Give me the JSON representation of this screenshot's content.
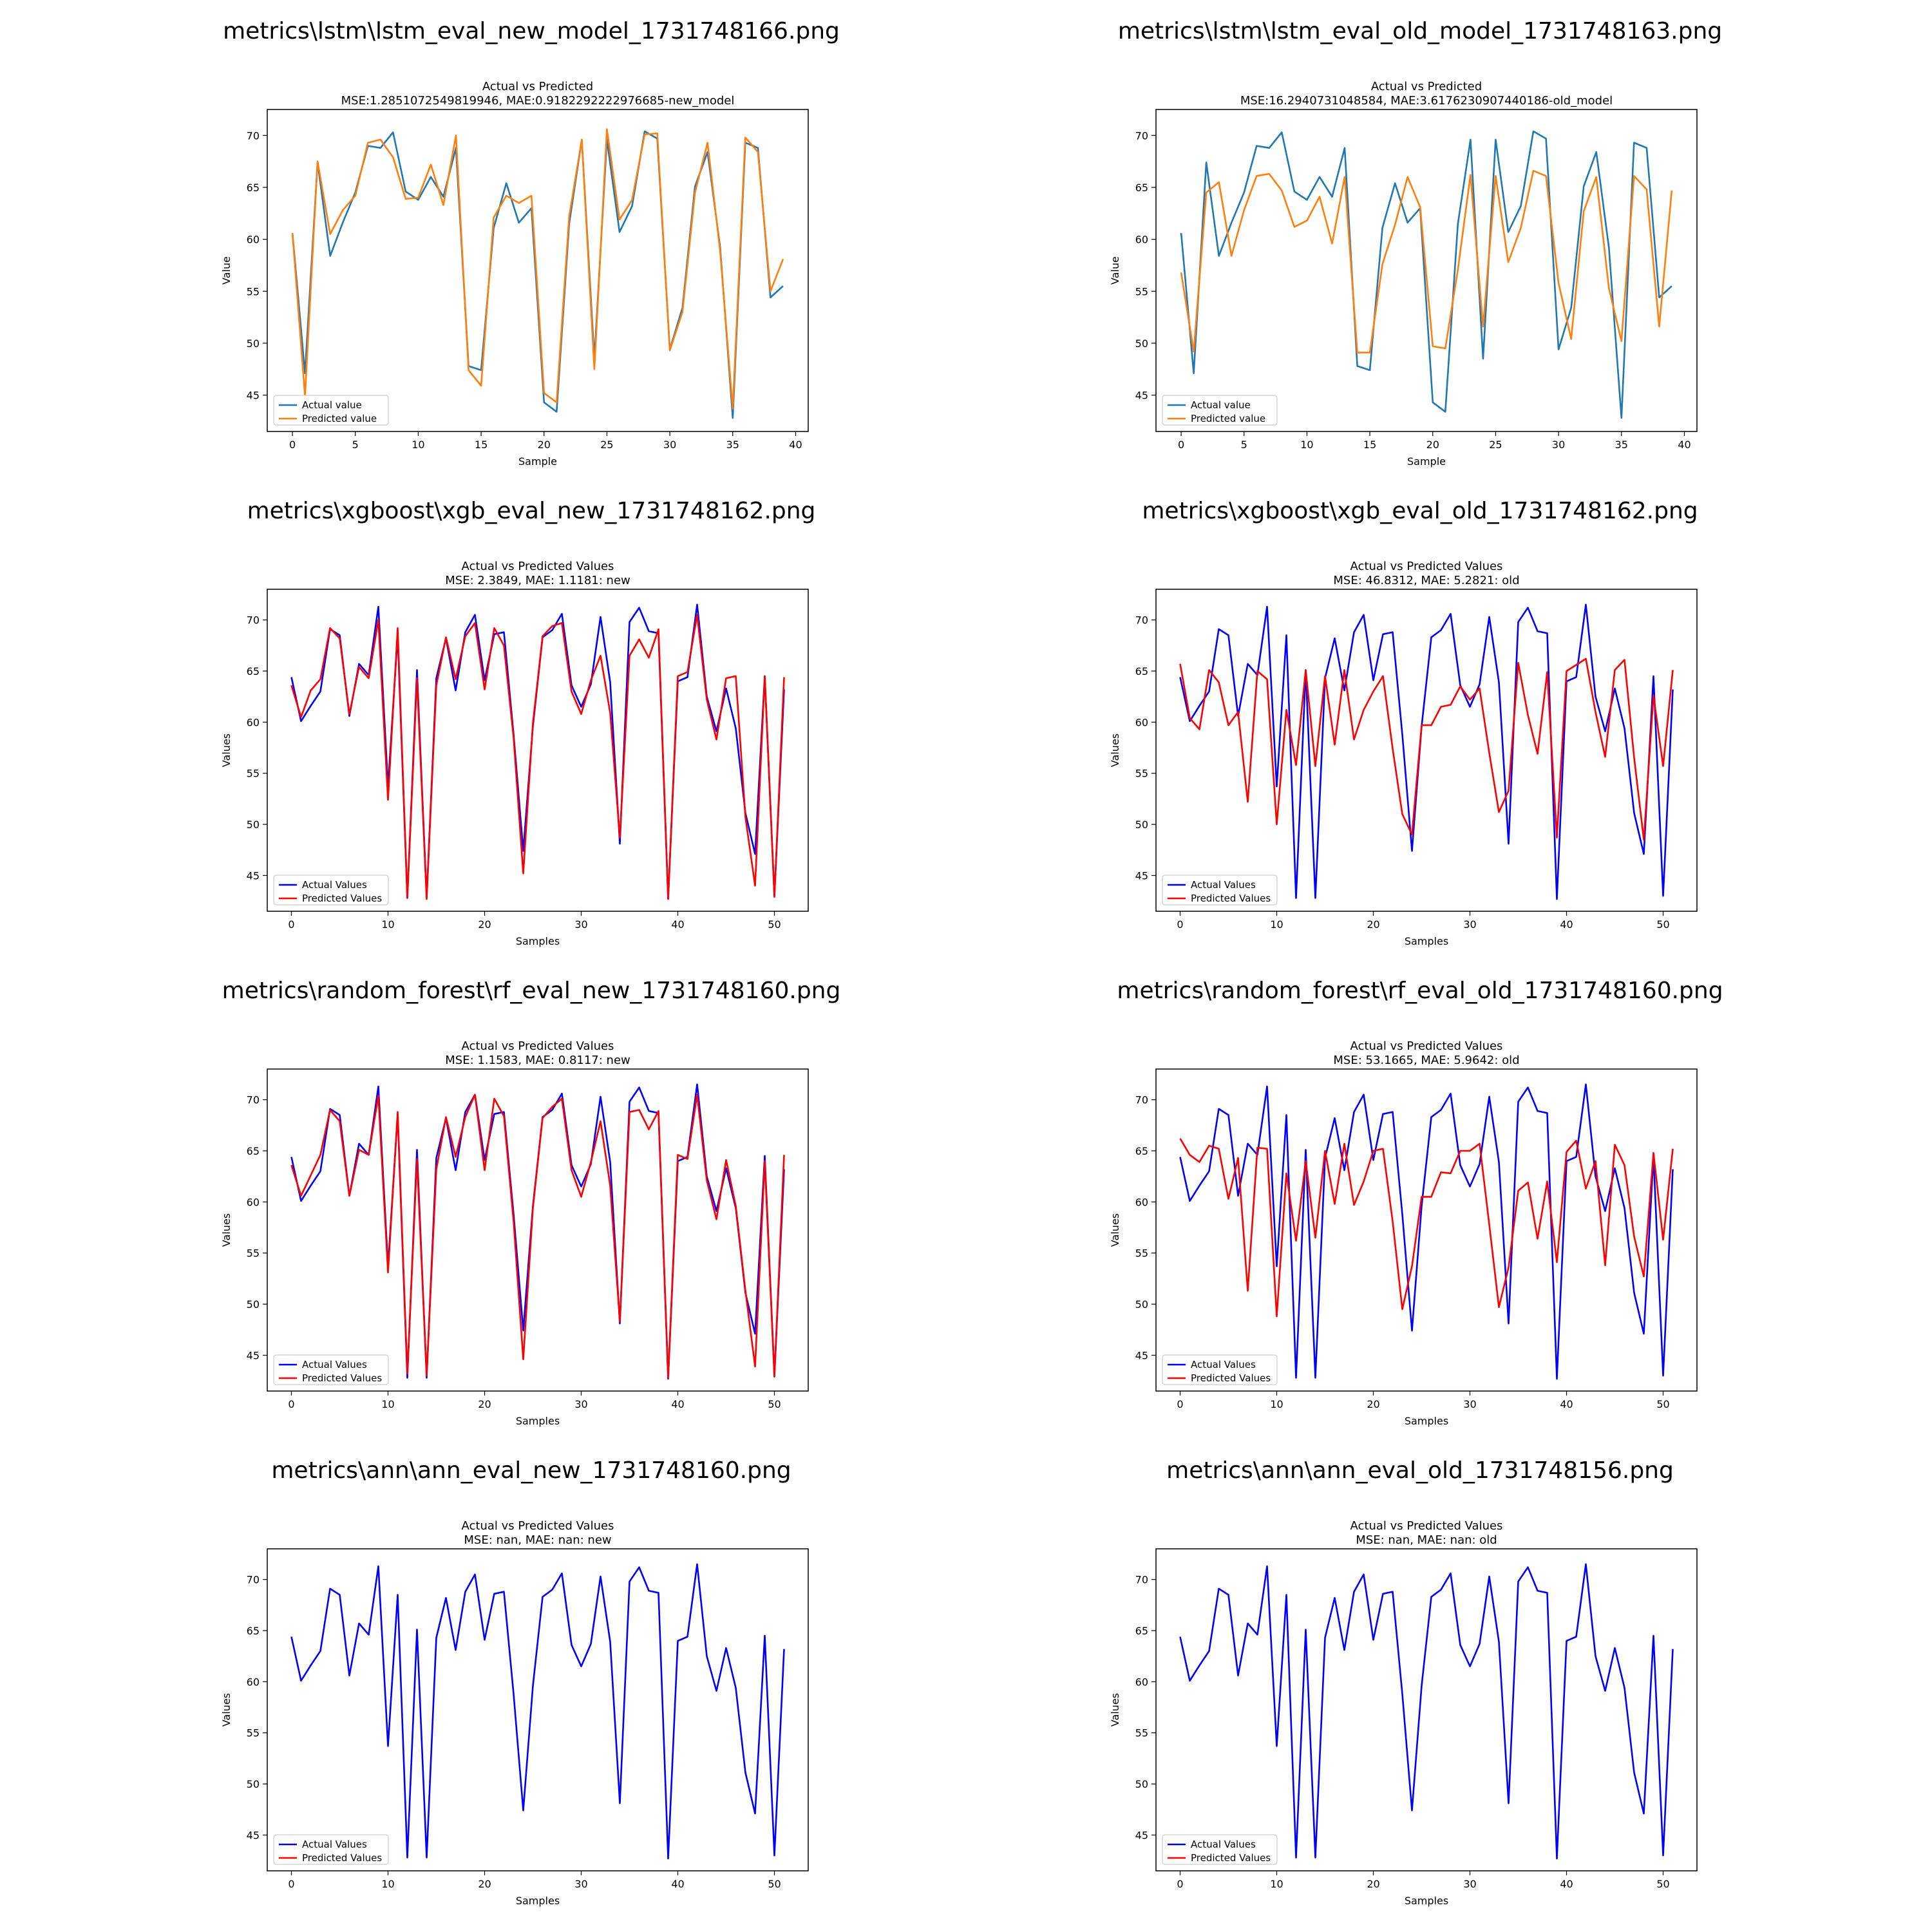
{
  "chart_data": [
    {
      "type": "line",
      "file_title": "metrics\\lstm\\lstm_eval_new_model_1731748166.png",
      "title": "Actual vs Predicted",
      "subtitle": "MSE:1.2851072549819946, MAE:0.9182292222976685-new_model",
      "xlabel": "Sample",
      "ylabel": "Value",
      "xlim": [
        -2,
        41
      ],
      "ylim": [
        41.5,
        72.5
      ],
      "xticks": [
        0,
        5,
        10,
        15,
        20,
        25,
        30,
        35,
        40
      ],
      "yticks": [
        45,
        50,
        55,
        60,
        65,
        70
      ],
      "legend_position": "lower left",
      "series": [
        {
          "name": "Actual value",
          "color": "#1f77b4",
          "values": [
            60.6,
            47.1,
            67.4,
            58.4,
            61.6,
            64.5,
            69.0,
            68.8,
            70.3,
            64.6,
            63.8,
            66.0,
            64.1,
            68.8,
            47.8,
            47.4,
            61.1,
            65.4,
            61.6,
            63.0,
            44.3,
            43.4,
            61.5,
            69.6,
            48.5,
            69.6,
            60.7,
            63.2,
            70.4,
            69.7,
            49.4,
            53.4,
            65.1,
            68.4,
            59.2,
            42.8,
            69.3,
            68.8,
            54.4,
            55.5
          ]
        },
        {
          "name": "Predicted value",
          "color": "#ff7f0e",
          "values": [
            60.6,
            44.9,
            67.5,
            60.5,
            62.8,
            64.2,
            69.3,
            69.6,
            67.9,
            63.9,
            64.0,
            67.2,
            63.3,
            70.0,
            47.4,
            45.9,
            62.1,
            64.2,
            63.5,
            64.2,
            45.2,
            44.3,
            62.2,
            69.6,
            47.5,
            70.6,
            61.9,
            63.8,
            70.1,
            70.2,
            49.3,
            53.0,
            64.5,
            69.3,
            58.8,
            43.7,
            69.8,
            68.4,
            55.0,
            58.1
          ]
        }
      ]
    },
    {
      "type": "line",
      "file_title": "metrics\\lstm\\lstm_eval_old_model_1731748163.png",
      "title": "Actual vs Predicted",
      "subtitle": "MSE:16.2940731048584, MAE:3.6176230907440186-old_model",
      "xlabel": "Sample",
      "ylabel": "Value",
      "xlim": [
        -2,
        41
      ],
      "ylim": [
        41.5,
        72.5
      ],
      "xticks": [
        0,
        5,
        10,
        15,
        20,
        25,
        30,
        35,
        40
      ],
      "yticks": [
        45,
        50,
        55,
        60,
        65,
        70
      ],
      "legend_position": "lower left",
      "series": [
        {
          "name": "Actual value",
          "color": "#1f77b4",
          "values": [
            60.6,
            47.1,
            67.4,
            58.4,
            61.6,
            64.5,
            69.0,
            68.8,
            70.3,
            64.6,
            63.8,
            66.0,
            64.1,
            68.8,
            47.8,
            47.4,
            61.1,
            65.4,
            61.6,
            63.0,
            44.3,
            43.4,
            61.5,
            69.6,
            48.5,
            69.6,
            60.7,
            63.2,
            70.4,
            69.7,
            49.4,
            53.4,
            65.1,
            68.4,
            59.2,
            42.8,
            69.3,
            68.8,
            54.4,
            55.5
          ]
        },
        {
          "name": "Predicted value",
          "color": "#ff7f0e",
          "values": [
            56.8,
            49.2,
            64.5,
            65.5,
            58.4,
            62.8,
            66.1,
            66.3,
            64.7,
            61.2,
            61.8,
            64.1,
            59.6,
            66.0,
            49.1,
            49.1,
            57.6,
            61.4,
            66.0,
            63.1,
            49.7,
            49.5,
            57.1,
            66.2,
            51.6,
            66.1,
            57.8,
            61.1,
            66.6,
            66.1,
            55.8,
            50.4,
            62.7,
            66.0,
            55.3,
            50.2,
            66.1,
            64.8,
            51.6,
            64.7
          ]
        }
      ]
    },
    {
      "type": "line",
      "file_title": "metrics\\xgboost\\xgb_eval_new_1731748162.png",
      "title": "Actual vs Predicted Values",
      "subtitle": "MSE: 2.3849, MAE: 1.1181: new",
      "xlabel": "Samples",
      "ylabel": "Values",
      "xlim": [
        -2.5,
        53.5
      ],
      "ylim": [
        41.5,
        73
      ],
      "xticks": [
        0,
        10,
        20,
        30,
        40,
        50
      ],
      "yticks": [
        45,
        50,
        55,
        60,
        65,
        70
      ],
      "legend_position": "lower left",
      "series": [
        {
          "name": "Actual Values",
          "color": "#0000ff",
          "values": [
            64.4,
            60.1,
            61.6,
            63.0,
            69.1,
            68.5,
            60.6,
            65.7,
            64.6,
            71.3,
            53.7,
            68.5,
            42.8,
            65.1,
            42.8,
            64.3,
            68.2,
            63.1,
            68.8,
            70.5,
            64.1,
            68.6,
            68.8,
            58.8,
            47.4,
            59.6,
            68.3,
            69.0,
            70.6,
            63.6,
            61.5,
            63.7,
            70.3,
            63.9,
            48.1,
            69.8,
            71.2,
            68.9,
            68.7,
            42.7,
            64.0,
            64.4,
            71.5,
            62.5,
            59.1,
            63.3,
            59.4,
            51.1,
            47.1,
            64.5,
            43.0,
            63.2
          ]
        },
        {
          "name": "Predicted Values",
          "color": "#ff0000",
          "values": [
            63.6,
            60.5,
            63.1,
            64.2,
            69.2,
            68.2,
            60.8,
            65.4,
            64.3,
            70.0,
            52.4,
            69.2,
            42.8,
            64.3,
            42.7,
            63.6,
            68.3,
            64.2,
            68.4,
            69.7,
            63.2,
            69.2,
            67.5,
            58.5,
            45.2,
            59.9,
            68.4,
            69.4,
            69.7,
            63.0,
            60.8,
            64.1,
            66.5,
            60.9,
            48.7,
            66.5,
            68.1,
            66.3,
            69.1,
            42.7,
            64.5,
            64.9,
            70.5,
            62.2,
            58.3,
            64.3,
            64.5,
            50.7,
            44.0,
            64.5,
            42.9,
            64.4
          ]
        }
      ]
    },
    {
      "type": "line",
      "file_title": "metrics\\xgboost\\xgb_eval_old_1731748162.png",
      "title": "Actual vs Predicted Values",
      "subtitle": "MSE: 46.8312, MAE: 5.2821: old",
      "xlabel": "Samples",
      "ylabel": "Values",
      "xlim": [
        -2.5,
        53.5
      ],
      "ylim": [
        41.5,
        73
      ],
      "xticks": [
        0,
        10,
        20,
        30,
        40,
        50
      ],
      "yticks": [
        45,
        50,
        55,
        60,
        65,
        70
      ],
      "legend_position": "lower left",
      "series": [
        {
          "name": "Actual Values",
          "color": "#0000ff",
          "values": [
            64.4,
            60.1,
            61.6,
            63.0,
            69.1,
            68.5,
            60.6,
            65.7,
            64.6,
            71.3,
            53.7,
            68.5,
            42.8,
            65.1,
            42.8,
            64.3,
            68.2,
            63.1,
            68.8,
            70.5,
            64.1,
            68.6,
            68.8,
            58.8,
            47.4,
            59.6,
            68.3,
            69.0,
            70.6,
            63.6,
            61.5,
            63.7,
            70.3,
            63.9,
            48.1,
            69.8,
            71.2,
            68.9,
            68.7,
            42.7,
            64.0,
            64.4,
            71.5,
            62.5,
            59.1,
            63.3,
            59.4,
            51.1,
            47.1,
            64.5,
            43.0,
            63.2
          ]
        },
        {
          "name": "Predicted Values",
          "color": "#ff0000",
          "values": [
            65.7,
            60.4,
            59.3,
            65.1,
            63.9,
            59.7,
            61.0,
            52.2,
            65.0,
            64.2,
            50.0,
            61.2,
            55.8,
            65.1,
            55.7,
            64.5,
            57.8,
            65.1,
            58.3,
            61.2,
            63.0,
            64.5,
            57.4,
            51.0,
            49.0,
            59.7,
            59.7,
            61.5,
            61.7,
            63.5,
            62.2,
            63.3,
            57.0,
            51.2,
            53.3,
            65.8,
            60.7,
            56.9,
            64.9,
            48.7,
            65.0,
            65.6,
            66.2,
            61.0,
            56.6,
            65.1,
            66.1,
            56.5,
            48.5,
            62.6,
            55.7,
            65.1
          ]
        }
      ]
    },
    {
      "type": "line",
      "file_title": "metrics\\random_forest\\rf_eval_new_1731748160.png",
      "title": "Actual vs Predicted Values",
      "subtitle": "MSE: 1.1583, MAE: 0.8117: new",
      "xlabel": "Samples",
      "ylabel": "Values",
      "xlim": [
        -2.5,
        53.5
      ],
      "ylim": [
        41.5,
        73
      ],
      "xticks": [
        0,
        10,
        20,
        30,
        40,
        50
      ],
      "yticks": [
        45,
        50,
        55,
        60,
        65,
        70
      ],
      "legend_position": "lower left",
      "series": [
        {
          "name": "Actual Values",
          "color": "#0000ff",
          "values": [
            64.4,
            60.1,
            61.6,
            63.0,
            69.1,
            68.5,
            60.6,
            65.7,
            64.6,
            71.3,
            53.7,
            68.5,
            42.8,
            65.1,
            42.8,
            64.3,
            68.2,
            63.1,
            68.8,
            70.5,
            64.1,
            68.6,
            68.8,
            58.8,
            47.4,
            59.6,
            68.3,
            69.0,
            70.6,
            63.6,
            61.5,
            63.7,
            70.3,
            63.9,
            48.1,
            69.8,
            71.2,
            68.9,
            68.7,
            42.7,
            64.0,
            64.4,
            71.5,
            62.5,
            59.1,
            63.3,
            59.4,
            51.1,
            47.1,
            64.5,
            43.0,
            63.2
          ]
        },
        {
          "name": "Predicted Values",
          "color": "#ff0000",
          "values": [
            63.6,
            60.6,
            62.6,
            64.6,
            69.0,
            67.9,
            60.6,
            65.1,
            64.6,
            70.4,
            53.1,
            68.8,
            43.2,
            64.2,
            43.0,
            63.2,
            68.3,
            64.4,
            68.3,
            70.5,
            63.1,
            70.1,
            68.4,
            58.1,
            44.6,
            59.4,
            68.2,
            69.3,
            70.1,
            63.1,
            60.5,
            63.9,
            67.9,
            61.6,
            48.3,
            68.8,
            69.0,
            67.1,
            68.9,
            42.8,
            64.6,
            64.2,
            70.5,
            62.1,
            58.3,
            64.1,
            59.6,
            51.3,
            43.9,
            64.0,
            42.9,
            64.6
          ]
        }
      ]
    },
    {
      "type": "line",
      "file_title": "metrics\\random_forest\\rf_eval_old_1731748160.png",
      "title": "Actual vs Predicted Values",
      "subtitle": "MSE: 53.1665, MAE: 5.9642: old",
      "xlabel": "Samples",
      "ylabel": "Values",
      "xlim": [
        -2.5,
        53.5
      ],
      "ylim": [
        41.5,
        73
      ],
      "xticks": [
        0,
        10,
        20,
        30,
        40,
        50
      ],
      "yticks": [
        45,
        50,
        55,
        60,
        65,
        70
      ],
      "legend_position": "lower left",
      "series": [
        {
          "name": "Actual Values",
          "color": "#0000ff",
          "values": [
            64.4,
            60.1,
            61.6,
            63.0,
            69.1,
            68.5,
            60.6,
            65.7,
            64.6,
            71.3,
            53.7,
            68.5,
            42.8,
            65.1,
            42.8,
            64.3,
            68.2,
            63.1,
            68.8,
            70.5,
            64.1,
            68.6,
            68.8,
            58.8,
            47.4,
            59.6,
            68.3,
            69.0,
            70.6,
            63.6,
            61.5,
            63.7,
            70.3,
            63.9,
            48.1,
            69.8,
            71.2,
            68.9,
            68.7,
            42.7,
            64.0,
            64.4,
            71.5,
            62.5,
            59.1,
            63.3,
            59.4,
            51.1,
            47.1,
            64.5,
            43.0,
            63.2
          ]
        },
        {
          "name": "Predicted Values",
          "color": "#ff0000",
          "values": [
            66.2,
            64.6,
            63.9,
            65.5,
            65.2,
            60.3,
            64.3,
            51.3,
            65.3,
            65.2,
            48.8,
            62.8,
            56.2,
            64.0,
            56.5,
            65.0,
            59.8,
            65.7,
            59.7,
            62.0,
            65.0,
            65.2,
            58.1,
            49.5,
            53.7,
            60.5,
            60.5,
            62.9,
            62.8,
            65.0,
            65.0,
            65.7,
            57.8,
            49.7,
            53.6,
            61.1,
            61.9,
            56.4,
            62.0,
            54.1,
            64.9,
            66.0,
            61.3,
            64.0,
            53.8,
            65.6,
            63.6,
            56.6,
            52.7,
            64.8,
            56.3,
            65.2
          ]
        }
      ]
    },
    {
      "type": "line",
      "file_title": "metrics\\ann\\ann_eval_new_1731748160.png",
      "title": "Actual vs Predicted Values",
      "subtitle": "MSE: nan, MAE: nan: new",
      "xlabel": "Samples",
      "ylabel": "Values",
      "xlim": [
        -2.5,
        53.5
      ],
      "ylim": [
        41.5,
        73
      ],
      "xticks": [
        0,
        10,
        20,
        30,
        40,
        50
      ],
      "yticks": [
        45,
        50,
        55,
        60,
        65,
        70
      ],
      "legend_position": "lower left",
      "series": [
        {
          "name": "Actual Values",
          "color": "#0000ff",
          "values": [
            64.4,
            60.1,
            61.6,
            63.0,
            69.1,
            68.5,
            60.6,
            65.7,
            64.6,
            71.3,
            53.7,
            68.5,
            42.8,
            65.1,
            42.8,
            64.3,
            68.2,
            63.1,
            68.8,
            70.5,
            64.1,
            68.6,
            68.8,
            58.8,
            47.4,
            59.6,
            68.3,
            69.0,
            70.6,
            63.6,
            61.5,
            63.7,
            70.3,
            63.9,
            48.1,
            69.8,
            71.2,
            68.9,
            68.7,
            42.7,
            64.0,
            64.4,
            71.5,
            62.5,
            59.1,
            63.3,
            59.4,
            51.1,
            47.1,
            64.5,
            43.0,
            63.2
          ]
        },
        {
          "name": "Predicted Values",
          "color": "#ff0000",
          "values": []
        }
      ]
    },
    {
      "type": "line",
      "file_title": "metrics\\ann\\ann_eval_old_1731748156.png",
      "title": "Actual vs Predicted Values",
      "subtitle": "MSE: nan, MAE: nan: old",
      "xlabel": "Samples",
      "ylabel": "Values",
      "xlim": [
        -2.5,
        53.5
      ],
      "ylim": [
        41.5,
        73
      ],
      "xticks": [
        0,
        10,
        20,
        30,
        40,
        50
      ],
      "yticks": [
        45,
        50,
        55,
        60,
        65,
        70
      ],
      "legend_position": "lower left",
      "series": [
        {
          "name": "Actual Values",
          "color": "#0000ff",
          "values": [
            64.4,
            60.1,
            61.6,
            63.0,
            69.1,
            68.5,
            60.6,
            65.7,
            64.6,
            71.3,
            53.7,
            68.5,
            42.8,
            65.1,
            42.8,
            64.3,
            68.2,
            63.1,
            68.8,
            70.5,
            64.1,
            68.6,
            68.8,
            58.8,
            47.4,
            59.6,
            68.3,
            69.0,
            70.6,
            63.6,
            61.5,
            63.7,
            70.3,
            63.9,
            48.1,
            69.8,
            71.2,
            68.9,
            68.7,
            42.7,
            64.0,
            64.4,
            71.5,
            62.5,
            59.1,
            63.3,
            59.4,
            51.1,
            47.1,
            64.5,
            43.0,
            63.2
          ]
        },
        {
          "name": "Predicted Values",
          "color": "#ff0000",
          "values": []
        }
      ]
    }
  ]
}
